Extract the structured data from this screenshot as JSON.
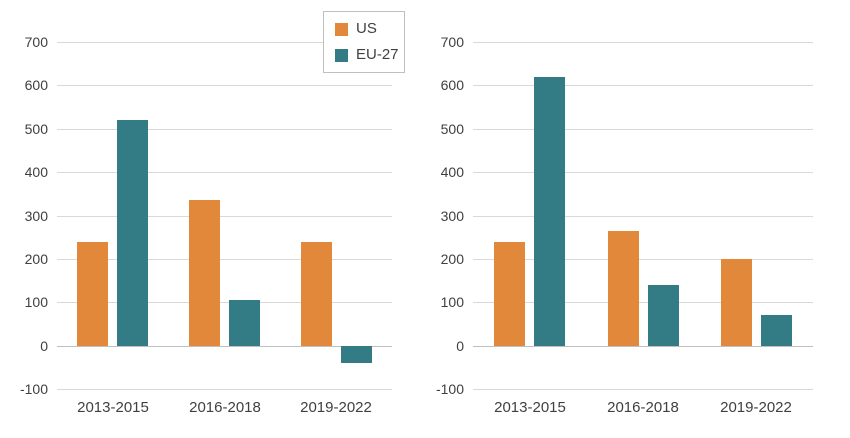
{
  "figure": {
    "background": "#FFFFFF",
    "text_color": "#404040",
    "gridline_color": "#D9D9D9",
    "zero_line_color": "#BFBFBF",
    "legend_border_color": "#BFBFBF"
  },
  "legend": {
    "items": [
      {
        "label": "US",
        "color": "#E2883B"
      },
      {
        "label": "EU-27",
        "color": "#337B85"
      }
    ]
  },
  "chart_data": [
    {
      "type": "bar",
      "panel": "left",
      "title": "",
      "xlabel": "",
      "ylabel": "",
      "categories": [
        "2013-2015",
        "2016-2018",
        "2019-2022"
      ],
      "series": [
        {
          "name": "US",
          "color": "#E2883B",
          "values": [
            240,
            335,
            240
          ]
        },
        {
          "name": "EU-27",
          "color": "#337B85",
          "values": [
            520,
            105,
            -40
          ]
        }
      ],
      "ylim": [
        -100,
        700
      ],
      "ytick_step": 100,
      "yticks": [
        700,
        600,
        500,
        400,
        300,
        200,
        100,
        0,
        -100
      ],
      "grid": true,
      "legend_position": "top-right"
    },
    {
      "type": "bar",
      "panel": "right",
      "title": "",
      "xlabel": "",
      "ylabel": "",
      "categories": [
        "2013-2015",
        "2016-2018",
        "2019-2022"
      ],
      "series": [
        {
          "name": "US",
          "color": "#E2883B",
          "values": [
            240,
            265,
            200
          ]
        },
        {
          "name": "EU-27",
          "color": "#337B85",
          "values": [
            620,
            140,
            70
          ]
        }
      ],
      "ylim": [
        -100,
        700
      ],
      "ytick_step": 100,
      "yticks": [
        700,
        600,
        500,
        400,
        300,
        200,
        100,
        0,
        -100
      ],
      "grid": true,
      "legend_position": "none"
    }
  ]
}
